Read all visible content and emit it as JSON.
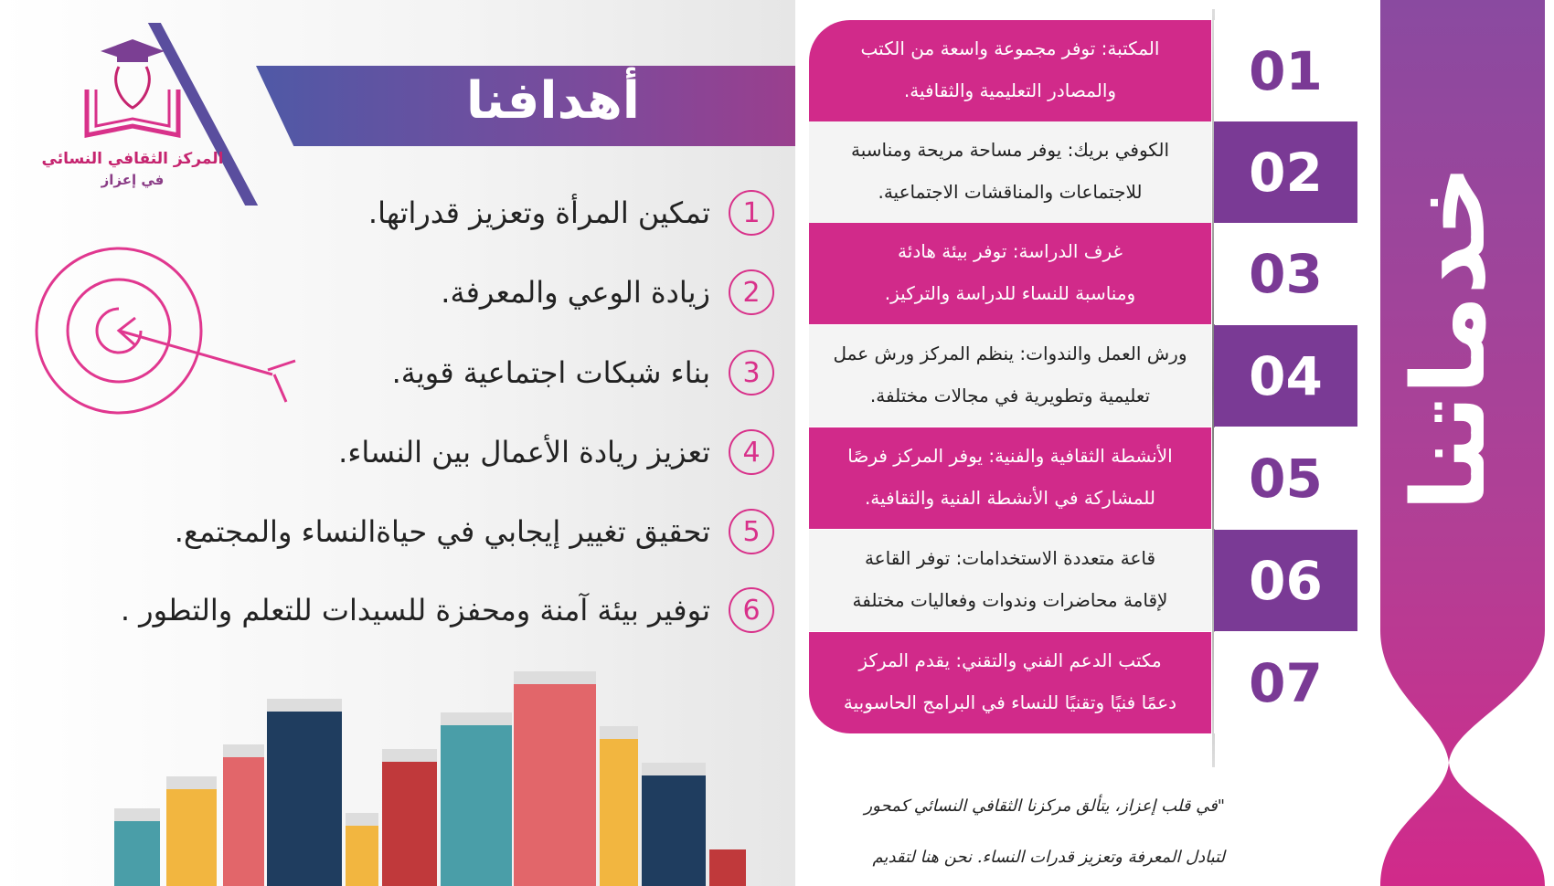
{
  "logo": {
    "name_line1": "المركز الثقافي النسائي",
    "name_line2": "في إعزاز"
  },
  "goals": {
    "title": "أهدافنا",
    "items": [
      {
        "num": "1",
        "text": "تمكين المرأة وتعزيز قدراتها."
      },
      {
        "num": "2",
        "text": "زيادة الوعي والمعرفة."
      },
      {
        "num": "3",
        "text": "بناء شبكات اجتماعية قوية."
      },
      {
        "num": "4",
        "text": "تعزيز ريادة الأعمال بين النساء."
      },
      {
        "num": "5",
        "text": "تحقيق تغيير إيجابي في حياةالنساء والمجتمع."
      },
      {
        "num": "6",
        "text": "توفير بيئة آمنة ومحفزة للسيدات للتعلم والتطور ."
      }
    ]
  },
  "services": {
    "title": "خدماتنا",
    "items": [
      {
        "num": "01",
        "line1": "المكتبة: توفر مجموعة واسعة من الكتب",
        "line2": "والمصادر التعليمية والثقافية."
      },
      {
        "num": "02",
        "line1": "الكوفي بريك: يوفر مساحة مريحة ومناسبة",
        "line2": "للاجتماعات والمناقشات الاجتماعية."
      },
      {
        "num": "03",
        "line1": "غرف الدراسة: توفر بيئة هادئة",
        "line2": "ومناسبة للنساء للدراسة والتركيز."
      },
      {
        "num": "04",
        "line1": "ورش العمل والندوات: ينظم المركز ورش عمل",
        "line2": "تعليمية وتطويرية في مجالات مختلفة."
      },
      {
        "num": "05",
        "line1": "الأنشطة الثقافية والفنية: يوفر المركز فرصًا",
        "line2": "للمشاركة في الأنشطة الفنية والثقافية."
      },
      {
        "num": "06",
        "line1": "قاعة متعددة الاستخدامات: توفر القاعة",
        "line2": "لإقامة محاضرات وندوات وفعاليات مختلفة"
      },
      {
        "num": "07",
        "line1": "مكتب الدعم الفني والتقني: يقدم المركز",
        "line2": "دعمًا فنيًا وتقنيًا للنساء في البرامج الحاسوبية"
      }
    ]
  },
  "quote": {
    "line1": "\"في قلب إعزاز، يتألق مركزنا الثقافي النسائي كمحور",
    "line2": "لتبادل المعرفة وتعزيز قدرات النساء. نحن هنا لتقديم"
  },
  "colors": {
    "pink": "#d12a8a",
    "purple": "#7a3a95",
    "blue": "#4f59a6"
  }
}
